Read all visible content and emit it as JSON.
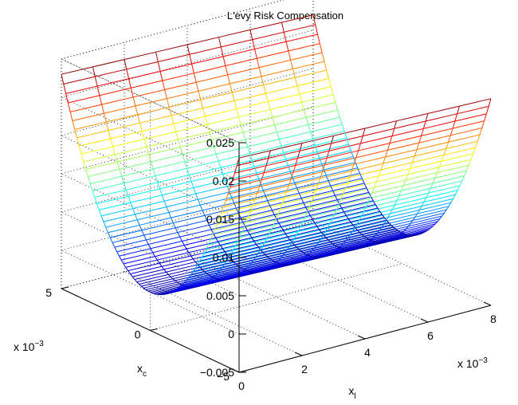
{
  "chart_data": {
    "type": "surface",
    "title": "L'evy Risk Compensation",
    "xlabel": "x",
    "xlabel_sub": "l",
    "ylabel": "x",
    "ylabel_sub": "c",
    "zlabel": "",
    "x_exponent_label": "x 10",
    "x_exponent_power": "−3",
    "y_exponent_label": "x 10",
    "y_exponent_power": "−3",
    "x_range": [
      0,
      8
    ],
    "y_range": [
      -5,
      5
    ],
    "z_range": [
      -0.005,
      0.025
    ],
    "x_ticks": [
      "0",
      "2",
      "4",
      "6",
      "8"
    ],
    "y_ticks": [
      "−5",
      "0",
      "5"
    ],
    "z_ticks": [
      "−0.005",
      "0",
      "0.005",
      "0.01",
      "0.015",
      "0.02",
      "0.025"
    ],
    "x_tick_values": [
      0,
      2,
      4,
      6,
      8
    ],
    "y_tick_values": [
      -5,
      0,
      5
    ],
    "z_tick_values": [
      -0.005,
      0,
      0.005,
      0.01,
      0.015,
      0.02,
      0.025
    ],
    "grid": true,
    "colormap": "jet",
    "surface_formula": "z = 0.023 * (y_c / 5)^2 - 0.001 * (x_l / 8); x and y in units of 1e-3",
    "surface_samples": {
      "x_l": [
        0,
        8
      ],
      "y_c_minus5": [
        0.023,
        0.022
      ],
      "y_c_0": [
        0.0,
        -0.001
      ],
      "y_c_plus5": [
        0.023,
        0.022
      ]
    }
  }
}
